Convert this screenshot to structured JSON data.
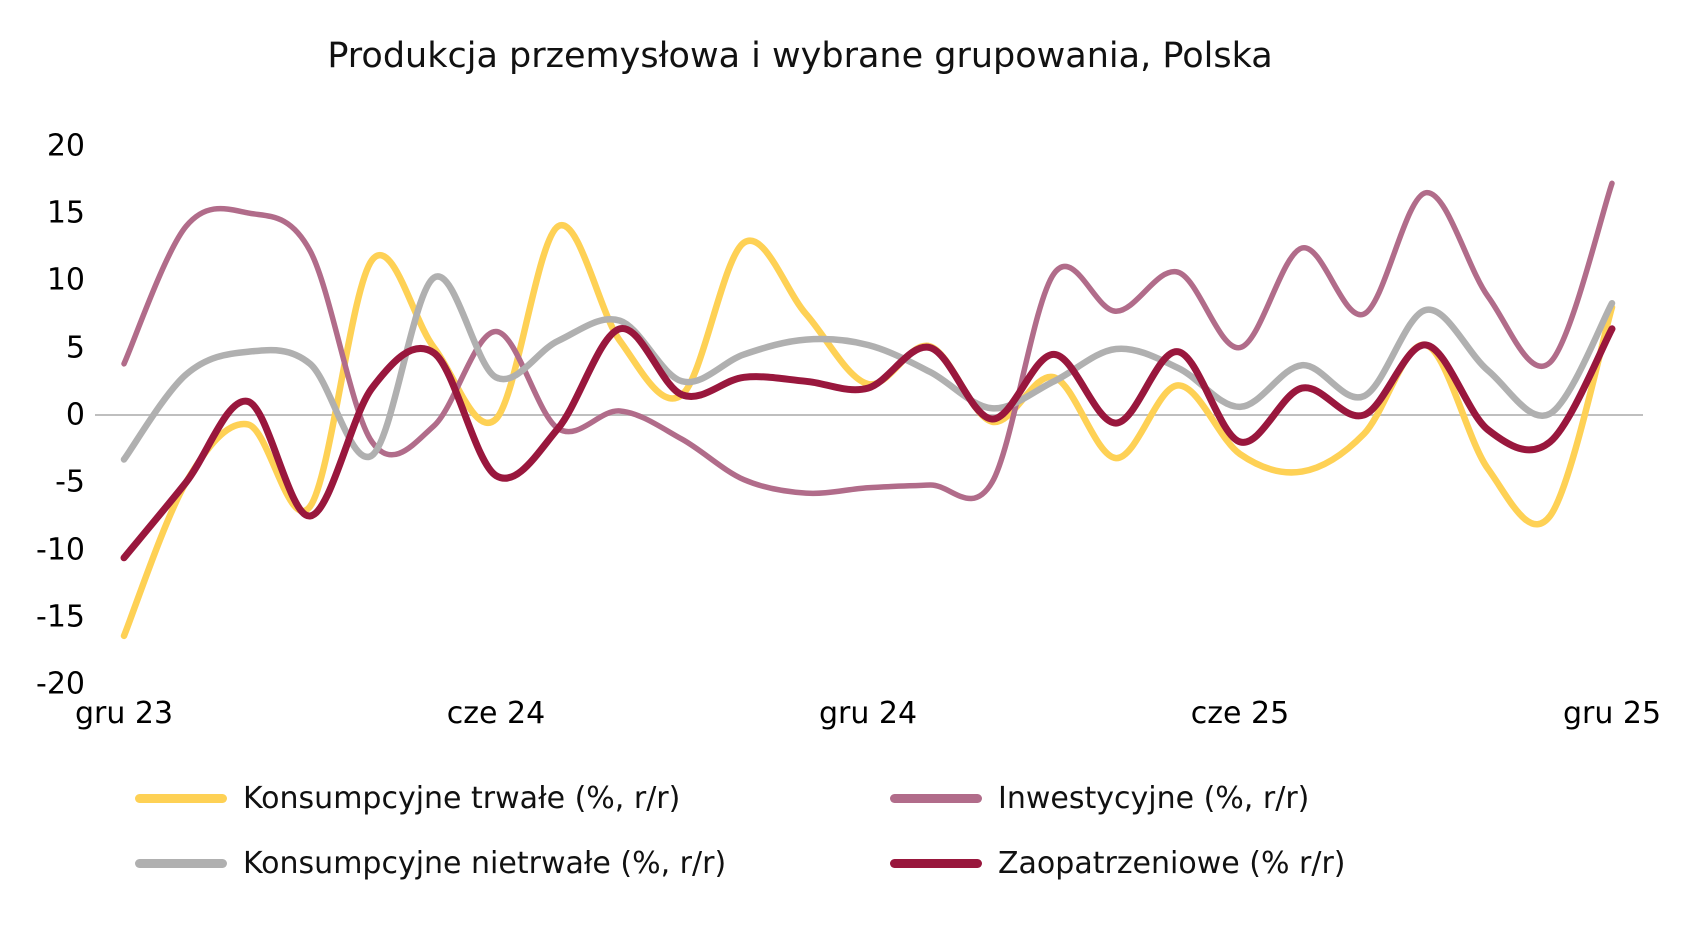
{
  "chart_data": {
    "type": "line",
    "title": "Produkcja przemysłowa i wybrane grupowania, Polska",
    "xlabel": "",
    "ylabel": "",
    "ylim": [
      -20,
      20
    ],
    "y_ticks": [
      20,
      15,
      10,
      5,
      0,
      -5,
      -10,
      -15,
      -20
    ],
    "x_tick_labels": [
      "gru 23",
      "cze 24",
      "gru 24",
      "cze 25",
      "gru 25"
    ],
    "x_tick_month_index": [
      0,
      6,
      12,
      18,
      24
    ],
    "months_span": 24,
    "grid": false,
    "zero_line": true,
    "legend_position": "bottom-two-columns",
    "background_color": "#FFFFFF",
    "axis_line_color": "#BFBFBF",
    "text_color": "#111111",
    "series": [
      {
        "name": "Konsumpcyjne trwałe (%, r/r)",
        "color": "#FED155",
        "values": [
          -16.4,
          -5.0,
          -0.7,
          -6.8,
          11.5,
          5.0,
          -0.3,
          14.0,
          5.5,
          1.5,
          12.8,
          7.5,
          2.3,
          5.1,
          -0.5,
          2.8,
          -3.2,
          2.2,
          -2.9,
          -4.2,
          -1.4,
          5.2,
          -4.0,
          -7.5,
          8.0
        ]
      },
      {
        "name": "Inwestycyjne (%, r/r)",
        "color": "#B16C8A",
        "values": [
          3.8,
          14.0,
          15.0,
          12.2,
          -2.0,
          -0.8,
          6.2,
          -1.0,
          0.3,
          -1.8,
          -4.8,
          -5.8,
          -5.4,
          -5.2,
          -5.0,
          10.5,
          7.7,
          10.6,
          5.0,
          12.4,
          7.5,
          16.5,
          8.8,
          3.9,
          17.2
        ]
      },
      {
        "name": "Konsumpcyjne nietrwałe (%, r/r)",
        "color": "#B0B0B0",
        "values": [
          -3.3,
          3.0,
          4.7,
          3.8,
          -3.0,
          10.2,
          2.8,
          5.5,
          7.0,
          2.5,
          4.5,
          5.6,
          5.2,
          3.2,
          0.5,
          2.5,
          4.9,
          3.5,
          0.6,
          3.7,
          1.4,
          7.8,
          3.3,
          0.1,
          8.3
        ]
      },
      {
        "name": "Zaopatrzeniowe (% r/r)",
        "color": "#99173D",
        "values": [
          -10.6,
          -5.0,
          1.0,
          -7.5,
          2.0,
          4.6,
          -4.5,
          -1.0,
          6.4,
          1.5,
          2.8,
          2.5,
          2.0,
          5.0,
          -0.3,
          4.5,
          -0.6,
          4.7,
          -2.0,
          2.0,
          0.0,
          5.2,
          -1.1,
          -2.0,
          6.4
        ]
      }
    ]
  }
}
